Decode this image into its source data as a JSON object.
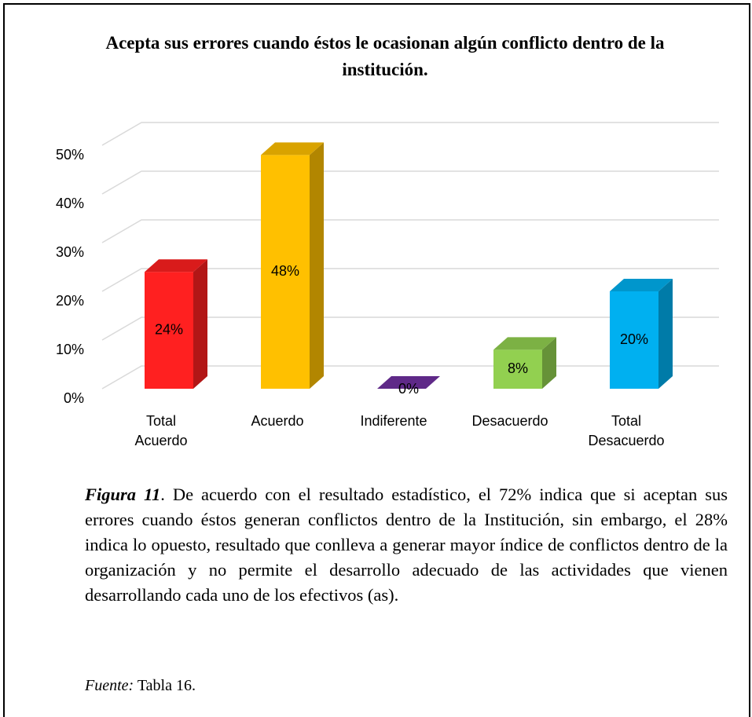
{
  "chart_data": {
    "type": "bar3d",
    "title": "Acepta sus errores cuando éstos le ocasionan algún conflicto dentro de la institución.",
    "categories": [
      "Total Acuerdo",
      "Acuerdo",
      "Indiferente",
      "Desacuerdo",
      "Total Desacuerdo"
    ],
    "values": [
      24,
      48,
      0,
      8,
      20
    ],
    "value_labels": [
      "24%",
      "48%",
      "0%",
      "8%",
      "20%"
    ],
    "colors": [
      "#ff2020",
      "#ffc000",
      "#7030a0",
      "#92d050",
      "#00b0f0"
    ],
    "ylim": [
      0,
      50
    ],
    "yticks": [
      {
        "value": 0,
        "label": "0%"
      },
      {
        "value": 10,
        "label": "10%"
      },
      {
        "value": 20,
        "label": "20%"
      },
      {
        "value": 30,
        "label": "30%"
      },
      {
        "value": 40,
        "label": "40%"
      },
      {
        "value": 50,
        "label": "50%"
      }
    ],
    "grid": true
  },
  "caption": {
    "label": "Figura 11",
    "text": ". De acuerdo con el resultado estadístico, el 72% indica que si aceptan sus errores cuando éstos generan conflictos dentro de la Institución, sin embargo, el 28% indica lo opuesto, resultado que conlleva a generar mayor índice de conflictos dentro de la organización y no permite el desarrollo adecuado de las actividades que vienen desarrollando cada uno de los efectivos (as)."
  },
  "source": {
    "label": "Fuente:",
    "text": "Tabla 16."
  }
}
